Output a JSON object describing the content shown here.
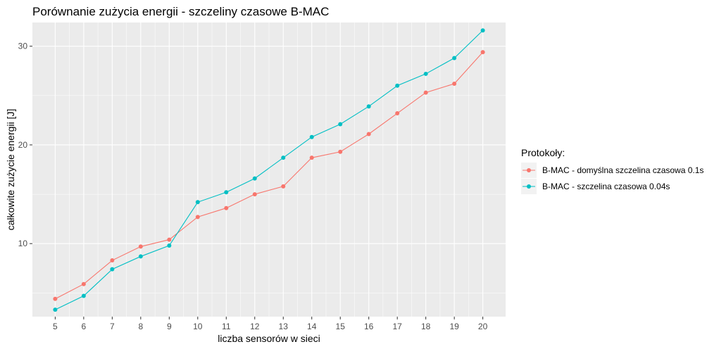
{
  "chart_data": {
    "type": "line",
    "title": "Porównanie zużycia energii - szczeliny czasowe B-MAC",
    "xlabel": "liczba sensorów w sieci",
    "ylabel": "całkowite zużycie energii [J]",
    "x": [
      5,
      6,
      7,
      8,
      9,
      10,
      11,
      12,
      13,
      14,
      15,
      16,
      17,
      18,
      19,
      20
    ],
    "xlim": [
      4.2,
      20.8
    ],
    "ylim": [
      2.6,
      32.4
    ],
    "yticks": [
      10,
      20,
      30
    ],
    "grid": true,
    "legend_title": "Protokoły:",
    "legend_position": "right",
    "series": [
      {
        "name": "B-MAC - domyślna szczelina czasowa 0.1s",
        "color": "#F8766D",
        "values": [
          4.4,
          5.9,
          8.3,
          9.7,
          10.4,
          12.7,
          13.6,
          15.0,
          15.8,
          18.7,
          19.3,
          21.1,
          23.2,
          25.3,
          26.2,
          29.4
        ]
      },
      {
        "name": "B-MAC - szczelina czasowa 0.04s",
        "color": "#00BFC4",
        "values": [
          3.3,
          4.7,
          7.4,
          8.7,
          9.8,
          14.2,
          15.2,
          16.6,
          18.7,
          20.8,
          22.1,
          23.9,
          26.0,
          27.2,
          28.8,
          31.6
        ]
      }
    ]
  }
}
